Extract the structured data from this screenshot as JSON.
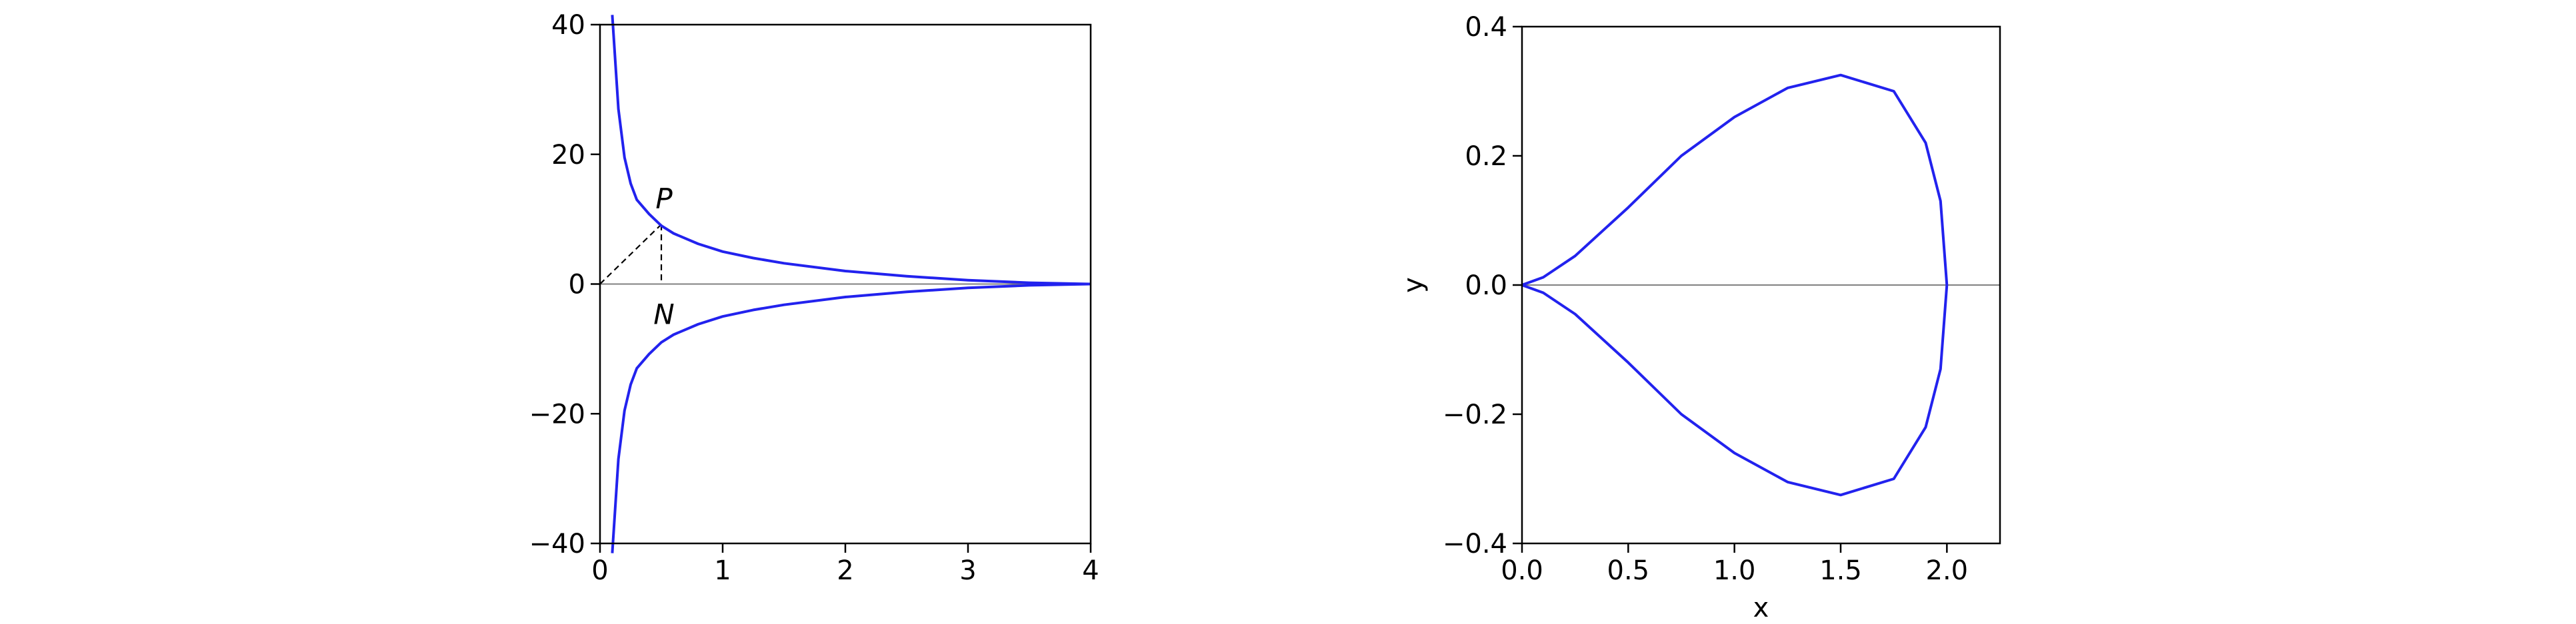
{
  "colors": {
    "curve": "#2222ee",
    "axes": "#000000",
    "zero_line": "#808080",
    "background": "#ffffff"
  },
  "chart_data": [
    {
      "type": "line",
      "title": "",
      "xlabel": "",
      "ylabel": "",
      "xlim": [
        0,
        4
      ],
      "ylim": [
        -40,
        40
      ],
      "xticks": [
        0,
        1,
        2,
        3,
        4
      ],
      "xtick_labels": [
        "0",
        "1",
        "2",
        "3",
        "4"
      ],
      "yticks": [
        -40,
        -20,
        0,
        20,
        40
      ],
      "ytick_labels": [
        "−40",
        "−20",
        "0",
        "20",
        "40"
      ],
      "grid": false,
      "zero_line": true,
      "series": [
        {
          "x": [
            0.1,
            0.15,
            0.2,
            0.25,
            0.3,
            0.4,
            0.5,
            0.6,
            0.8,
            1.0,
            1.25,
            1.5,
            2.0,
            2.5,
            3.0,
            3.5,
            4.0
          ],
          "y": [
            41.5,
            27.0,
            19.5,
            15.5,
            13.0,
            10.8,
            9.0,
            7.8,
            6.2,
            5.0,
            4.0,
            3.2,
            2.0,
            1.2,
            0.6,
            0.2,
            0.0
          ]
        },
        {
          "x": [
            0.1,
            0.15,
            0.2,
            0.25,
            0.3,
            0.4,
            0.5,
            0.6,
            0.8,
            1.0,
            1.25,
            1.5,
            2.0,
            2.5,
            3.0,
            3.5,
            4.0
          ],
          "y": [
            -41.5,
            -27.0,
            -19.5,
            -15.5,
            -13.0,
            -10.8,
            -9.0,
            -7.8,
            -6.2,
            -5.0,
            -4.0,
            -3.2,
            -2.0,
            -1.2,
            -0.6,
            -0.2,
            0.0
          ]
        }
      ],
      "annotations": [
        {
          "text": "P",
          "point": [
            0.5,
            9.2
          ]
        },
        {
          "text": "N",
          "point": [
            0.5,
            0
          ]
        }
      ],
      "dashed_lines": [
        {
          "from": [
            0,
            0
          ],
          "to": [
            0.5,
            9.2
          ]
        },
        {
          "from": [
            0.5,
            9.2
          ],
          "to": [
            0.5,
            0
          ]
        }
      ]
    },
    {
      "type": "line",
      "title": "",
      "xlabel": "x",
      "ylabel": "y",
      "xlim": [
        0,
        2.25
      ],
      "ylim": [
        -0.4,
        0.4
      ],
      "xticks": [
        0.0,
        0.5,
        1.0,
        1.5,
        2.0
      ],
      "xtick_labels": [
        "0.0",
        "0.5",
        "1.0",
        "1.5",
        "2.0"
      ],
      "yticks": [
        -0.4,
        -0.2,
        0.0,
        0.2,
        0.4
      ],
      "ytick_labels": [
        "−0.4",
        "−0.2",
        "0.0",
        "0.2",
        "0.4"
      ],
      "grid": false,
      "zero_line": true,
      "series": [
        {
          "x": [
            0.0,
            0.1,
            0.25,
            0.5,
            0.75,
            1.0,
            1.25,
            1.5,
            1.75,
            1.9,
            1.97,
            2.0
          ],
          "y": [
            0.0,
            0.012,
            0.045,
            0.12,
            0.2,
            0.26,
            0.305,
            0.325,
            0.3,
            0.22,
            0.13,
            0.0
          ]
        },
        {
          "x": [
            0.0,
            0.1,
            0.25,
            0.5,
            0.75,
            1.0,
            1.25,
            1.5,
            1.75,
            1.9,
            1.97,
            2.0
          ],
          "y": [
            0.0,
            -0.012,
            -0.045,
            -0.12,
            -0.2,
            -0.26,
            -0.305,
            -0.325,
            -0.3,
            -0.22,
            -0.13,
            0.0
          ]
        }
      ]
    }
  ]
}
